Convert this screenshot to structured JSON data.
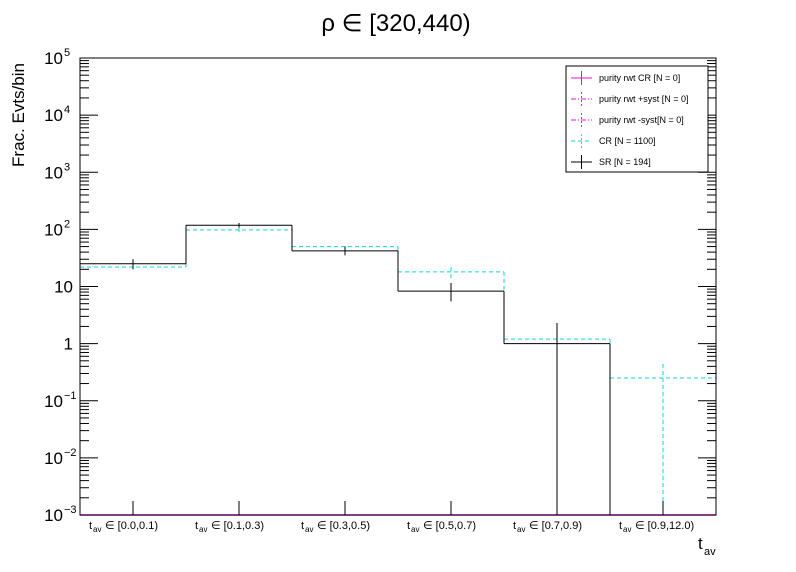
{
  "chart_data": {
    "type": "bar",
    "title": "ρ ∈ [320,440)",
    "ylabel": "Frac. Evts/bin",
    "xlabel": "t_av",
    "xlabel_main": "t",
    "xlabel_sub": "av",
    "yscale": "log",
    "ylim": [
      0.001,
      100000
    ],
    "yticks": [
      {
        "base": "10",
        "exp": "5",
        "value": 100000
      },
      {
        "base": "10",
        "exp": "4",
        "value": 10000
      },
      {
        "base": "10",
        "exp": "3",
        "value": 1000
      },
      {
        "base": "10",
        "exp": "2",
        "value": 100
      },
      {
        "base": "10",
        "exp": "",
        "value": 10
      },
      {
        "base": "1",
        "exp": "",
        "value": 1
      },
      {
        "base": "10",
        "exp": "−1",
        "value": 0.1
      },
      {
        "base": "10",
        "exp": "−2",
        "value": 0.01
      },
      {
        "base": "10",
        "exp": "−3",
        "value": 0.001
      }
    ],
    "categories": [
      {
        "sub": "av",
        "label": "∈ [0.0,0.1)"
      },
      {
        "sub": "av",
        "label": "∈ [0.1,0.3)"
      },
      {
        "sub": "av",
        "label": "∈ [0.3,0.5)"
      },
      {
        "sub": "av",
        "label": "∈ [0.5,0.7)"
      },
      {
        "sub": "av",
        "label": "∈ [0.7,0.9)"
      },
      {
        "sub": "av",
        "label": "∈ [0.9,12.0)"
      }
    ],
    "category_prefix": "t",
    "series": [
      {
        "name": "purity rwt CR [N = 0]",
        "color": "#ff00ff",
        "style": "solid",
        "values": [
          0,
          0,
          0,
          0,
          0,
          0
        ]
      },
      {
        "name": "purity rwt +syst [N = 0]",
        "color": "#ff00ff",
        "style": "dashdot",
        "values": [
          0,
          0,
          0,
          0,
          0,
          0
        ]
      },
      {
        "name": "purity rwt -syst[N = 0]",
        "color": "#ff00ff",
        "style": "dashdot",
        "values": [
          0,
          0,
          0,
          0,
          0,
          0
        ]
      },
      {
        "name": "CR [N = 1100]",
        "color": "#00dddd",
        "style": "dashed",
        "values": [
          22,
          98,
          50,
          18,
          1.2,
          0.25
        ],
        "errors": [
          [
            20,
            24
          ],
          [
            90,
            106
          ],
          [
            43,
            57
          ],
          [
            14,
            22
          ],
          [
            0.5,
            2.1
          ],
          [
            0.001,
            0.5
          ]
        ]
      },
      {
        "name": "SR [N = 194]",
        "color": "#000000",
        "style": "solid",
        "values": [
          25,
          118,
          42,
          8.3,
          1.0,
          0
        ],
        "errors": [
          [
            20,
            30
          ],
          [
            107,
            129
          ],
          [
            35,
            50
          ],
          [
            5.5,
            11.5
          ],
          [
            0.001,
            2.3
          ],
          null
        ]
      }
    ],
    "legend": "top-right",
    "grid": false
  }
}
